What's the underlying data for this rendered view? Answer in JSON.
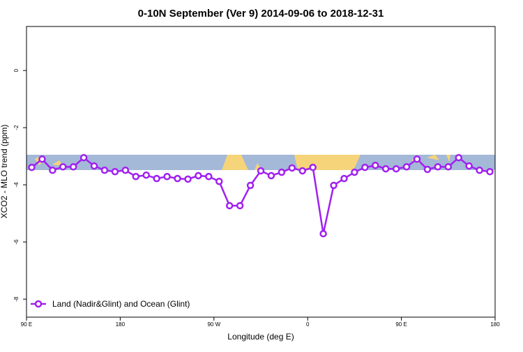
{
  "chart_data": {
    "type": "line",
    "title": "0-10N September (Ver 9)   2014-09-06 to 2018-12-31",
    "x_label": "Longitude (deg E)",
    "y_label": "XCO2 - MLO trend (ppm)",
    "x": [
      95,
      105,
      115,
      125,
      135,
      145,
      155,
      165,
      175,
      185,
      195,
      205,
      215,
      225,
      235,
      245,
      255,
      265,
      275,
      285,
      295,
      305,
      315,
      325,
      335,
      345,
      355,
      365,
      375,
      385,
      395,
      405,
      415,
      425,
      435,
      445,
      455,
      465,
      475,
      485,
      495,
      505,
      515,
      525,
      535
    ],
    "series": [
      {
        "name": "Land (Nadir&Glint) and Ocean (Glint)",
        "color": "#a020f0",
        "values": [
          -3.39,
          -3.1,
          -3.49,
          -3.37,
          -3.37,
          -3.05,
          -3.34,
          -3.49,
          -3.54,
          -3.49,
          -3.71,
          -3.66,
          -3.78,
          -3.71,
          -3.78,
          -3.8,
          -3.68,
          -3.71,
          -3.88,
          -4.73,
          -4.73,
          -4.02,
          -3.51,
          -3.68,
          -3.56,
          -3.41,
          -3.51,
          -3.39,
          -5.71,
          -4.02,
          -3.78,
          -3.56,
          -3.39,
          -3.32,
          -3.44,
          -3.44,
          -3.37,
          -3.1,
          -3.46,
          -3.37,
          -3.37,
          -3.05,
          -3.34,
          -3.49,
          -3.54
        ]
      }
    ],
    "xlim": [
      90,
      540
    ],
    "ylim": [
      -8.63,
      1.54
    ],
    "xticks": [
      {
        "value": 90,
        "label": "90 E"
      },
      180,
      {
        "value": 270,
        "label": "90 W"
      },
      {
        "value": 360,
        "label": "0"
      },
      {
        "value": 450,
        "label": "90 E"
      },
      {
        "value": 540,
        "label": "180"
      }
    ],
    "yticks": [
      0,
      -2,
      -4,
      -6,
      -8
    ],
    "legend": "bottom-left"
  }
}
